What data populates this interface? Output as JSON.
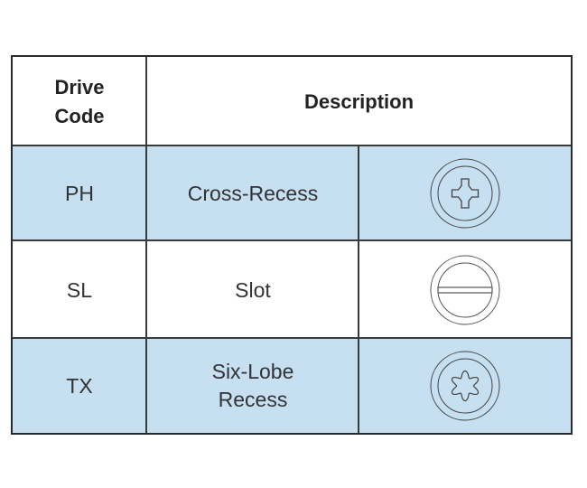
{
  "header": {
    "drive_code": "Drive\nCode",
    "drive_code_line1": "Drive",
    "drive_code_line2": "Code",
    "description": "Description"
  },
  "rows": [
    {
      "code": "PH",
      "description": "Cross-Recess",
      "icon": "phillips-drive-icon",
      "shaded": true
    },
    {
      "code": "SL",
      "description": "Slot",
      "icon": "slot-drive-icon",
      "shaded": false
    },
    {
      "code": "TX",
      "description_line1": "Six-Lobe",
      "description_line2": "Recess",
      "icon": "torx-drive-icon",
      "shaded": true
    }
  ],
  "colors": {
    "row_shade": "#c6dff1",
    "border": "#2a2a2a"
  }
}
